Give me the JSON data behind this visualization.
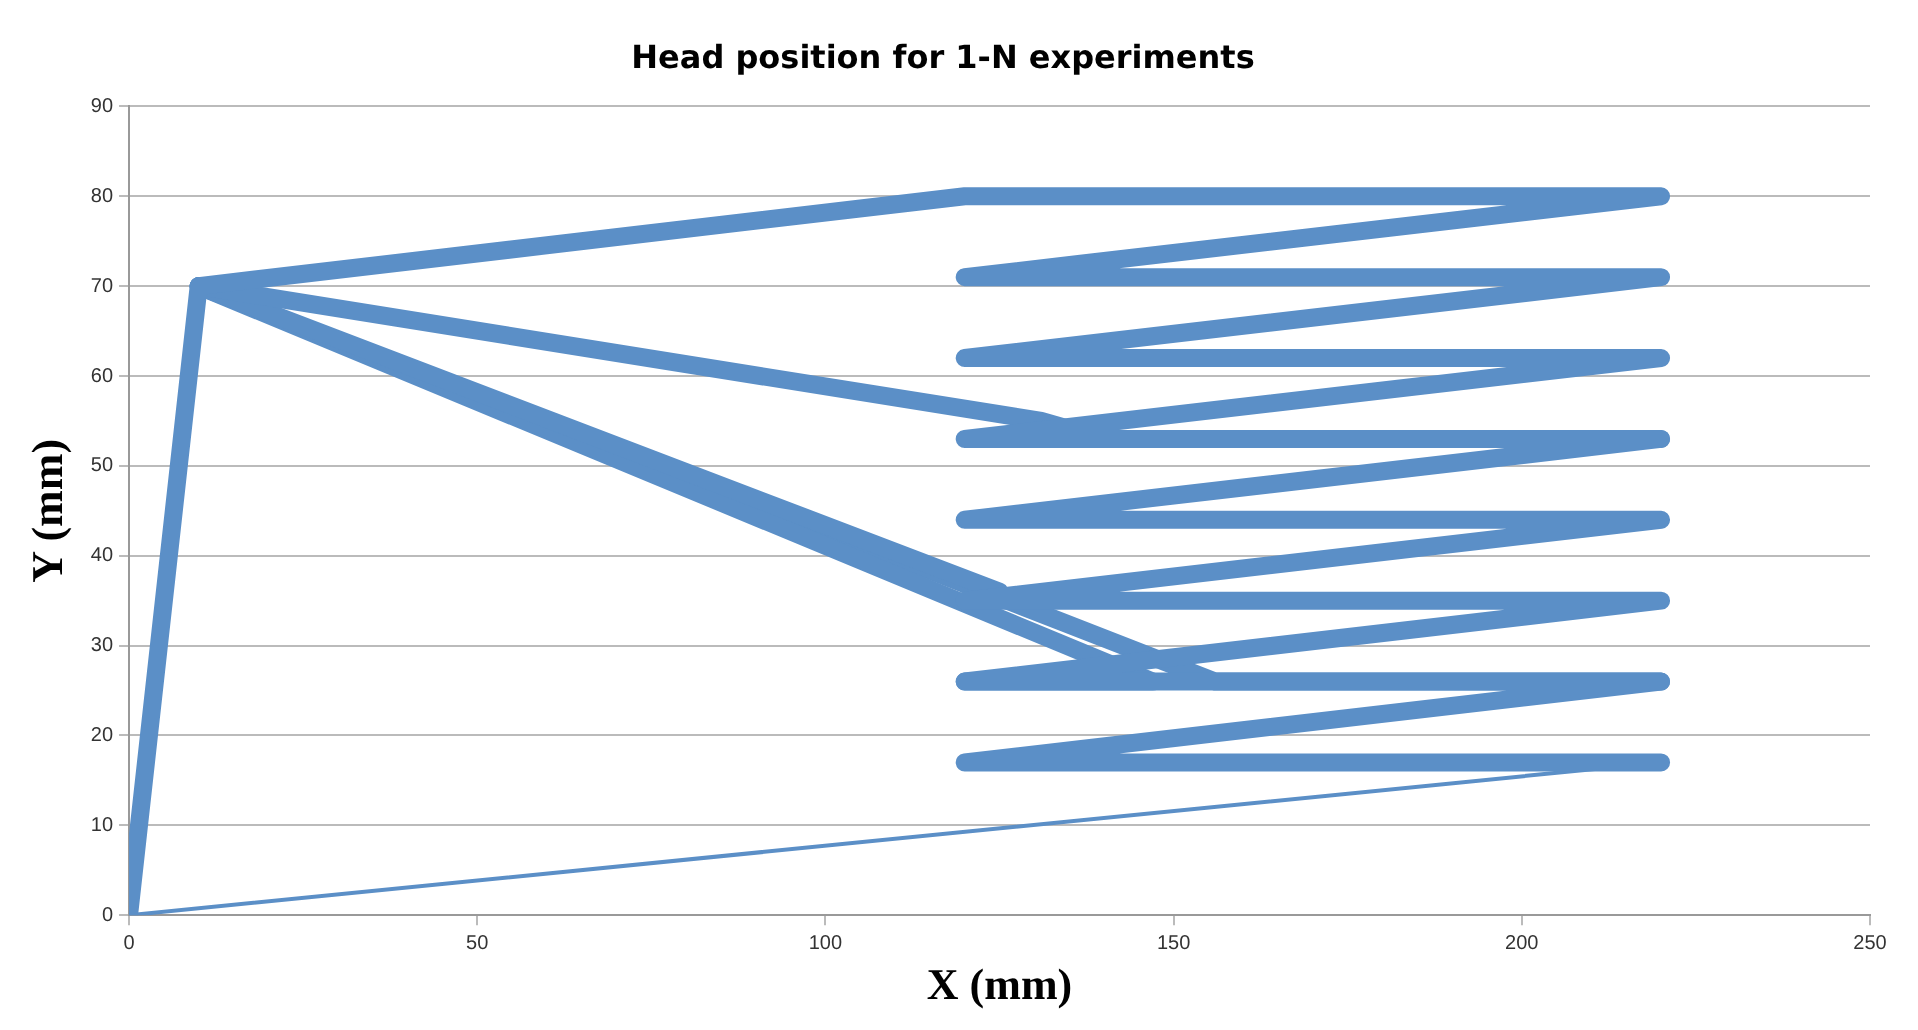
{
  "chart_data": {
    "type": "line",
    "title": "Head position for 1-N experiments",
    "xlabel": "X (mm)",
    "ylabel": "Y (mm)",
    "xlim": [
      0,
      250
    ],
    "xticks": [
      0,
      50,
      100,
      150,
      200,
      250
    ],
    "ylim": [
      0,
      90
    ],
    "yticks": [
      0,
      10,
      20,
      30,
      40,
      50,
      60,
      70,
      80,
      90
    ],
    "grid": "y",
    "series": [
      {
        "color": "#5b8fc7",
        "x": [
          0,
          10,
          120,
          220,
          120,
          220,
          120,
          220,
          120,
          220,
          120,
          220,
          120,
          220,
          120,
          220,
          120,
          220
        ],
        "values": [
          0,
          70,
          80,
          80,
          71,
          71,
          62,
          62,
          53,
          53,
          44,
          44,
          35,
          35,
          26,
          26,
          17,
          17
        ]
      },
      {
        "color": "#5b8fc7",
        "x": [
          10,
          131,
          140,
          220
        ],
        "values": [
          70,
          55,
          53,
          53
        ]
      },
      {
        "color": "#5b8fc7",
        "x": [
          10,
          125
        ],
        "values": [
          70,
          36
        ]
      },
      {
        "color": "#5b8fc7",
        "x": [
          10,
          147,
          120
        ],
        "values": [
          70,
          26,
          26
        ]
      },
      {
        "color": "#5b8fc7",
        "x": [
          10,
          156,
          220
        ],
        "values": [
          70,
          26,
          26
        ]
      },
      {
        "color": "#5b8fc7",
        "x": [
          220,
          0
        ],
        "values": [
          17,
          0
        ]
      }
    ]
  }
}
